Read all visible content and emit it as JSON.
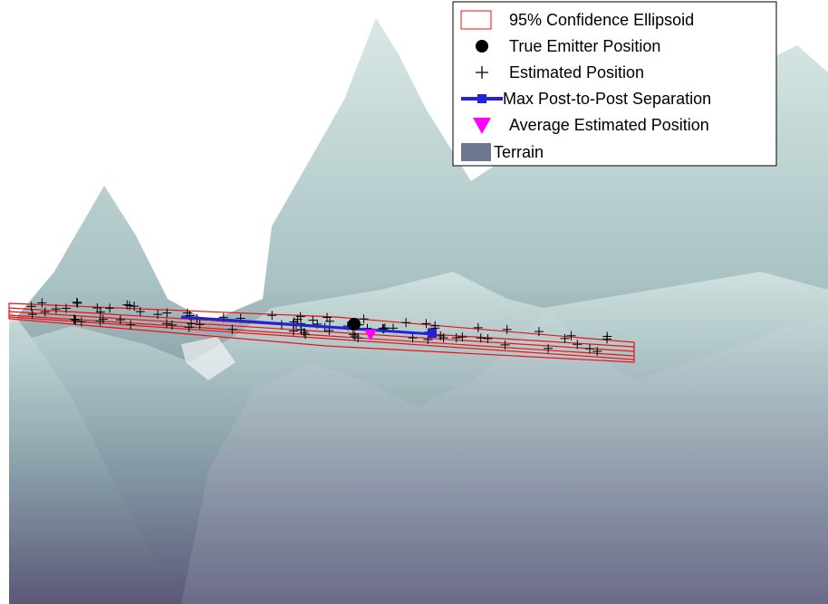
{
  "legend": {
    "items": [
      {
        "label": "95% Confidence Ellipsoid"
      },
      {
        "label": "True Emitter Position"
      },
      {
        "label": "Estimated Position"
      },
      {
        "label": "Max Post-to-Post Separation"
      },
      {
        "label": "Average Estimated Position"
      },
      {
        "label": "Terrain"
      }
    ]
  }
}
